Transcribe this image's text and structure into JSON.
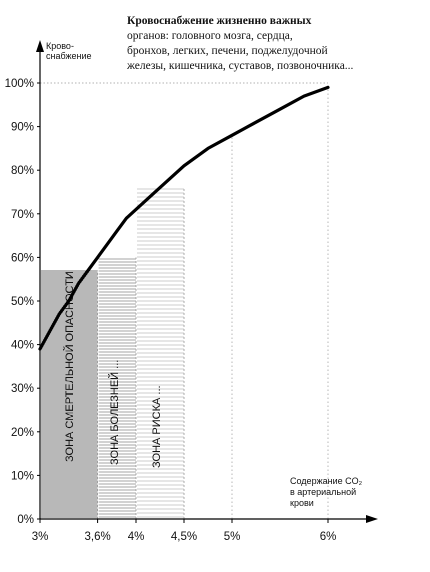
{
  "annotation": {
    "lines": [
      "Кровоснабжение жизненно важных",
      "органов: головного мозга, сердца,",
      "бронхов, легких, печени, поджелудочной",
      "железы, кишечника, суставов, позвоночника..."
    ]
  },
  "chart_data": {
    "type": "line",
    "ylabel_lines": [
      "Крово-",
      "снабжение"
    ],
    "xlabel_lines": [
      "Содержание CO₂",
      "в артериальной",
      "крови"
    ],
    "x_ticks": [
      {
        "value": 3,
        "label": "3%"
      },
      {
        "value": 3.6,
        "label": "3,6%"
      },
      {
        "value": 4,
        "label": "4%"
      },
      {
        "value": 4.5,
        "label": "4,5%"
      },
      {
        "value": 5,
        "label": "5%"
      },
      {
        "value": 6,
        "label": "6%"
      }
    ],
    "y_ticks": [
      {
        "value": 0,
        "label": "0%"
      },
      {
        "value": 10,
        "label": "10%"
      },
      {
        "value": 20,
        "label": "20%"
      },
      {
        "value": 30,
        "label": "30%"
      },
      {
        "value": 40,
        "label": "40%"
      },
      {
        "value": 50,
        "label": "50%"
      },
      {
        "value": 60,
        "label": "60%"
      },
      {
        "value": 70,
        "label": "70%"
      },
      {
        "value": 80,
        "label": "80%"
      },
      {
        "value": 90,
        "label": "90%"
      },
      {
        "value": 100,
        "label": "100%"
      }
    ],
    "xlim": [
      3,
      6.5
    ],
    "ylim": [
      0,
      107
    ],
    "series": [
      {
        "x": [
          3.0,
          3.1,
          3.2,
          3.3,
          3.4,
          3.5,
          3.6,
          3.7,
          3.8,
          3.9,
          4.0,
          4.25,
          4.5,
          4.75,
          5.0,
          5.25,
          5.5,
          5.75,
          6.0
        ],
        "y": [
          39,
          43,
          47,
          50,
          54,
          57,
          60,
          63,
          66,
          69,
          71,
          76,
          81,
          85,
          88,
          91,
          94,
          97,
          99
        ]
      }
    ],
    "zones": [
      {
        "label": "ЗОНА СМЕРТЕЛЬНОЙ ОПАСНОСТИ",
        "x_start": 3,
        "x_end": 3.6,
        "y_top": 57
      },
      {
        "label": "ЗОНА БОЛЕЗНЕЙ ...",
        "x_start": 3.6,
        "x_end": 4,
        "y_top": 60
      },
      {
        "label": "ЗОНА РИСКА ...",
        "x_start": 4,
        "x_end": 4.5,
        "y_top": 76
      }
    ],
    "reference_line": {
      "y": 100,
      "x_end": 6
    },
    "colors": {
      "curve": "#000000",
      "hatch": "#222222",
      "grid": "#999999"
    }
  }
}
